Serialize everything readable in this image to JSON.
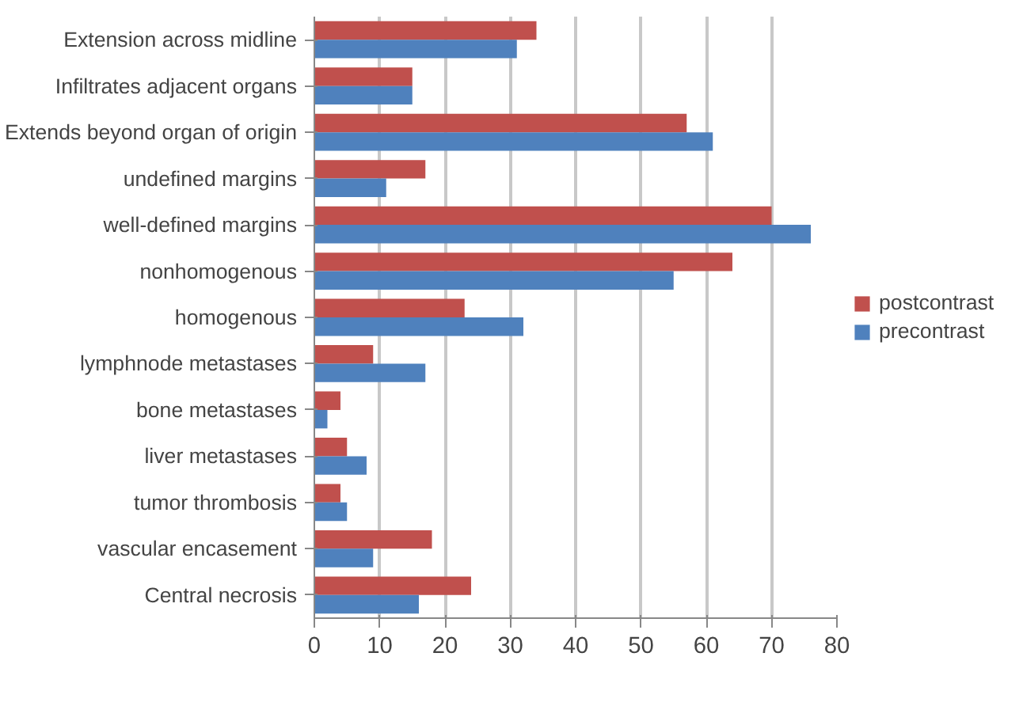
{
  "chart_data": {
    "type": "bar",
    "orientation": "horizontal",
    "categories": [
      "Extension across midline",
      "Infiltrates adjacent organs",
      "Extends beyond organ of origin",
      "undefined margins",
      "well-defined margins",
      "nonhomogenous",
      "homogenous",
      "lymphnode metastases",
      "bone metastases",
      "liver metastases",
      "tumor thrombosis",
      "vascular encasement",
      "Central necrosis"
    ],
    "series": [
      {
        "name": "postcontrast",
        "color": "#c0504d",
        "values": [
          34,
          15,
          57,
          17,
          70,
          64,
          23,
          9,
          4,
          5,
          4,
          18,
          24
        ]
      },
      {
        "name": "precontrast",
        "color": "#4f81bd",
        "values": [
          31,
          15,
          61,
          11,
          76,
          55,
          32,
          17,
          2,
          8,
          5,
          9,
          16
        ]
      }
    ],
    "xlim": [
      0,
      80
    ],
    "xticks": [
      0,
      10,
      20,
      30,
      40,
      50,
      60,
      70,
      80
    ],
    "grid": "x",
    "legend": "right"
  }
}
